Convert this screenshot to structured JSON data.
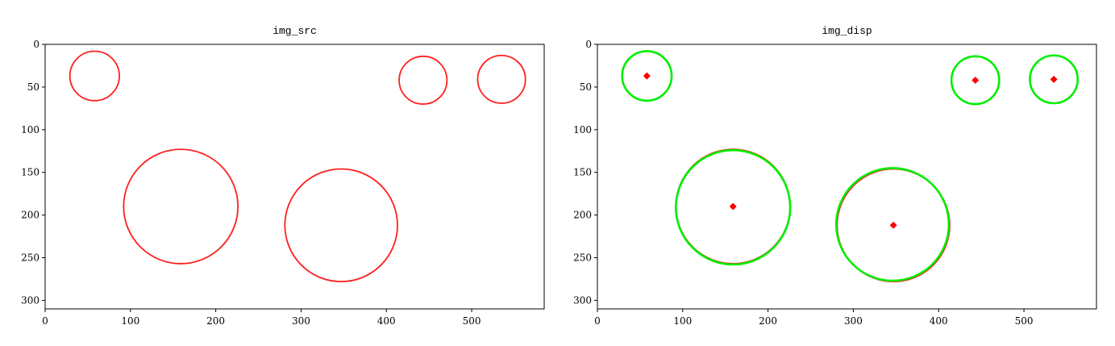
{
  "chart_data": [
    {
      "type": "image",
      "title": "img_src",
      "xlim": [
        0,
        585
      ],
      "ylim": [
        310,
        0
      ],
      "xticks": [
        0,
        100,
        200,
        300,
        400,
        500
      ],
      "yticks": [
        0,
        50,
        100,
        150,
        200,
        250,
        300
      ],
      "series": [
        {
          "marker": "ring",
          "color": "#ff2020",
          "x": [
            58,
            443,
            535,
            159,
            347
          ],
          "y": [
            37,
            42,
            41,
            190,
            212
          ],
          "r": [
            29,
            28,
            28,
            67,
            66
          ]
        }
      ]
    },
    {
      "type": "image",
      "title": "img_disp",
      "xlim": [
        0,
        585
      ],
      "ylim": [
        310,
        0
      ],
      "xticks": [
        0,
        100,
        200,
        300,
        400,
        500
      ],
      "yticks": [
        0,
        50,
        100,
        150,
        200,
        250,
        300
      ],
      "series": [
        {
          "marker": "ring",
          "color": "#ff2020",
          "x": [
            58,
            443,
            535,
            159,
            347
          ],
          "y": [
            37,
            42,
            41,
            190,
            212
          ],
          "r": [
            29,
            28,
            28,
            67,
            66
          ]
        },
        {
          "marker": "ring",
          "color": "#00ee00",
          "x": [
            58,
            443,
            535,
            159,
            346
          ],
          "y": [
            37,
            42,
            41,
            191,
            211
          ],
          "r": [
            29,
            28,
            28,
            67,
            66
          ]
        },
        {
          "marker": "point",
          "color": "#ff0000",
          "x": [
            58,
            443,
            535,
            159,
            347
          ],
          "y": [
            37,
            42,
            41,
            190,
            212
          ],
          "r": [
            3,
            3,
            3,
            3,
            3
          ]
        }
      ]
    }
  ]
}
